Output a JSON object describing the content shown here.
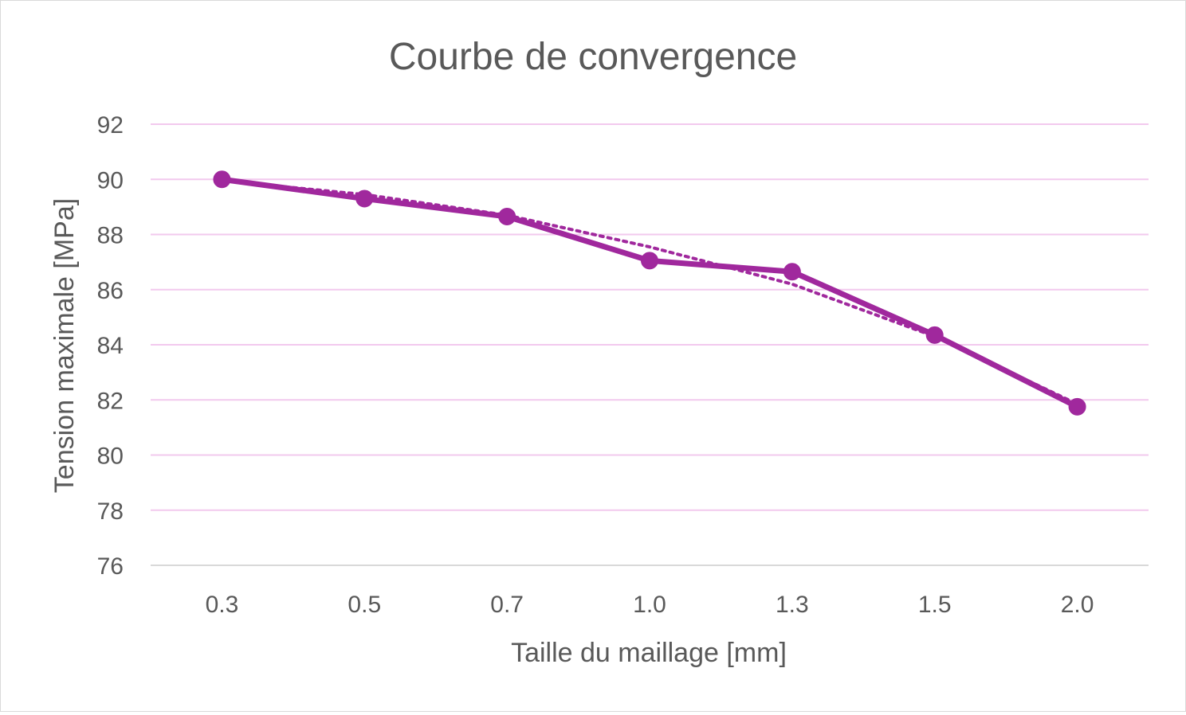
{
  "chart_data": {
    "type": "line",
    "title": "Courbe de convergence",
    "xlabel": "Taille du maillage [mm]",
    "ylabel": "Tension maximale [MPa]",
    "categories": [
      "0.3",
      "0.5",
      "0.7",
      "1.0",
      "1.3",
      "1.5",
      "2.0"
    ],
    "series": [
      {
        "values": [
          90.0,
          89.3,
          88.65,
          87.05,
          86.65,
          84.35,
          81.75
        ],
        "color": "#a0289d",
        "style": "solid",
        "markers": true
      },
      {
        "values": [
          89.95,
          89.45,
          88.7,
          87.55,
          86.2,
          84.3,
          81.85
        ],
        "color": "#a0289d",
        "style": "dotted",
        "markers": false
      }
    ],
    "yticks": [
      "76",
      "78",
      "80",
      "82",
      "84",
      "86",
      "88",
      "90",
      "92"
    ],
    "ylim": [
      76,
      92
    ],
    "grid": true,
    "gridline_color": "#f2c9ee"
  }
}
